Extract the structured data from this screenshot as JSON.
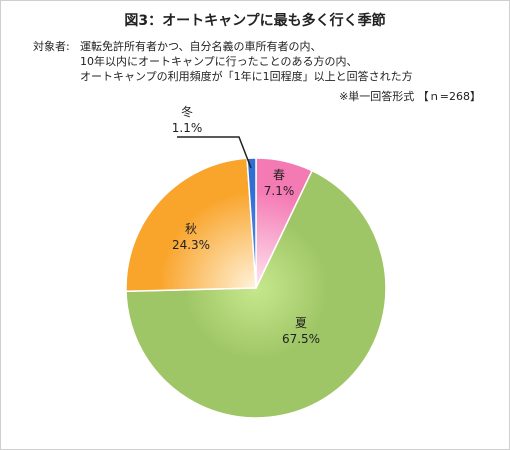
{
  "chart_data": {
    "type": "pie",
    "title": "図3：オートキャンプに最も多く行く季節",
    "target_label": "対象者:",
    "target_lines": [
      "運転免許所有者かつ、自分名義の車所有者の内、",
      "10年以内にオートキャンプに行ったことのある方の内、",
      "オートキャンプの利用頻度が「1年に1回程度」以上と回答された方"
    ],
    "note": "※単一回答形式 【ｎ=268】",
    "slices": [
      {
        "label": "春",
        "value": 7.1,
        "value_label": "7.1%",
        "color": "#f47ab4",
        "light": "#ffe6f1"
      },
      {
        "label": "夏",
        "value": 67.5,
        "value_label": "67.5%",
        "color": "#9fc666",
        "light": "#c6e88d"
      },
      {
        "label": "秋",
        "value": 24.3,
        "value_label": "24.3%",
        "color": "#f9a42a",
        "light": "#fff3dc"
      },
      {
        "label": "冬",
        "value": 1.1,
        "value_label": "1.1%",
        "color": "#2f6fd4",
        "light": "#5e93ea"
      }
    ]
  }
}
